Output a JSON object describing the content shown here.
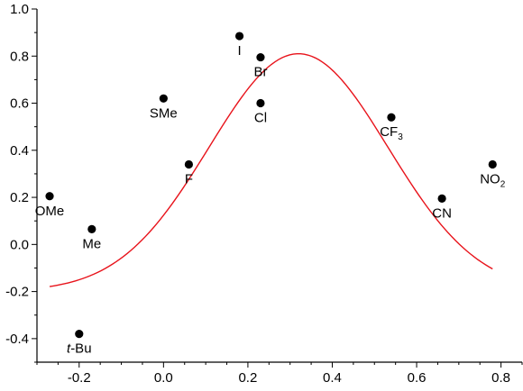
{
  "chart_data": {
    "type": "scatter",
    "title": "",
    "xlabel": "",
    "ylabel": "",
    "xlim": [
      -0.3,
      0.85
    ],
    "ylim": [
      -0.5,
      1.0
    ],
    "grid": false,
    "x_ticks": [
      {
        "value": -0.2,
        "label": "-0.2"
      },
      {
        "value": 0.0,
        "label": "0.0"
      },
      {
        "value": 0.2,
        "label": "0.2"
      },
      {
        "value": 0.4,
        "label": "0.4"
      },
      {
        "value": 0.6,
        "label": "0.6"
      },
      {
        "value": 0.8,
        "label": "0.8"
      }
    ],
    "y_ticks": [
      {
        "value": 1.0,
        "label": "1.0"
      },
      {
        "value": 0.8,
        "label": "0.8"
      },
      {
        "value": 0.6,
        "label": "0.6"
      },
      {
        "value": 0.4,
        "label": "0.4"
      },
      {
        "value": 0.2,
        "label": "0.2"
      },
      {
        "value": 0.0,
        "label": "0.0"
      },
      {
        "value": -0.2,
        "label": "-0.2"
      },
      {
        "value": -0.4,
        "label": "-0.4"
      }
    ],
    "points": [
      {
        "label": "OMe",
        "x": -0.27,
        "y": 0.205,
        "label_pos": "below"
      },
      {
        "label": "Me",
        "x": -0.17,
        "y": 0.065,
        "label_pos": "below"
      },
      {
        "label": "t-Bu",
        "x": -0.2,
        "y": -0.38,
        "label_pos": "below",
        "italic_prefix": "t",
        "rest": "-Bu"
      },
      {
        "label": "SMe",
        "x": 0.0,
        "y": 0.62,
        "label_pos": "below"
      },
      {
        "label": "F",
        "x": 0.06,
        "y": 0.34,
        "label_pos": "below"
      },
      {
        "label": "I",
        "x": 0.18,
        "y": 0.885,
        "label_pos": "below"
      },
      {
        "label": "Br",
        "x": 0.23,
        "y": 0.795,
        "label_pos": "below"
      },
      {
        "label": "Cl",
        "x": 0.23,
        "y": 0.6,
        "label_pos": "below"
      },
      {
        "label": "CF3",
        "x": 0.54,
        "y": 0.54,
        "label_pos": "below",
        "main": "CF",
        "sub": "3"
      },
      {
        "label": "CN",
        "x": 0.66,
        "y": 0.195,
        "label_pos": "below"
      },
      {
        "label": "NO2",
        "x": 0.78,
        "y": 0.34,
        "label_pos": "below",
        "main": "NO",
        "sub": "2"
      }
    ],
    "fit_curve": {
      "type": "gaussian",
      "color": "#e8131b",
      "x_range": [
        -0.27,
        0.78
      ],
      "offset": -0.2,
      "amplitude": 1.01,
      "center": 0.32,
      "width": 0.3
    },
    "marker_color": "#000000"
  }
}
